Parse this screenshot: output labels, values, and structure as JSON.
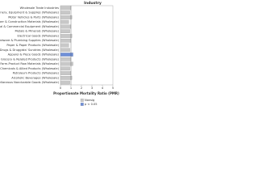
{
  "chart_data": {
    "type": "bar",
    "orientation": "horizontal",
    "title": "Industry",
    "x_label": "Proportionate Mortality Ratio (PMR)",
    "categories": [
      "Wholesale Trade Industries",
      "Machinery, Equipment & Supplies (Wholesale)",
      "Motor Vehicles & Parts (Wholesale)",
      "Lumber & Construction Materials (Wholesale)",
      "Professional & Commercial Equipment (Wholesale)",
      "Metals & Minerals (Wholesale)",
      "Electrical Goods (Wholesale)",
      "Hardware & Plumbing Supplies (Wholesale)",
      "Paper & Paper Products (Wholesale)",
      "Drugs & Druggists' Sundries (Wholesale)",
      "Apparel & Piece Goods (Wholesale)",
      "Grocery & Related Products (Wholesale)",
      "Farm-Product Raw Materials (Wholesale)",
      "Chemicals & Allied Products (Wholesale)",
      "Petroleum Products (Wholesale)",
      "Alcoholic Beverages (Wholesale)",
      "Miscellaneous Nondurable Goods (Wholesale)"
    ],
    "series": [
      {
        "name": "Nonsig",
        "color": "#c8c8c8",
        "values": [
          1.0,
          0.9,
          1.1,
          0.8,
          1.0,
          0.9,
          1.1,
          1.0,
          0.8,
          0.9,
          null,
          1.0,
          1.2,
          0.9,
          1.0,
          1.1,
          0.9
        ]
      },
      {
        "name": "p < 0.05",
        "color": "#6f8fd8",
        "values": [
          null,
          null,
          null,
          null,
          null,
          null,
          null,
          null,
          null,
          null,
          1.2,
          null,
          null,
          null,
          null,
          null,
          null
        ]
      }
    ],
    "xlim": [
      0,
      5
    ],
    "xticks": [
      0,
      1,
      2,
      3,
      4,
      5
    ],
    "reference_line": 1
  }
}
